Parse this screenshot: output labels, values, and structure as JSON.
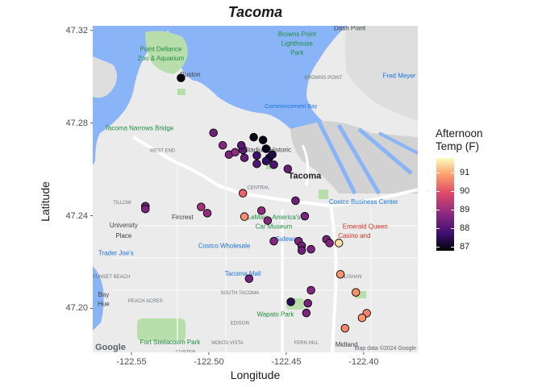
{
  "title": "Tacoma",
  "chart_data": {
    "type": "scatter",
    "title": "Tacoma",
    "xlabel": "Longitude",
    "ylabel": "Latitude",
    "xlim": [
      -122.575,
      -122.365
    ],
    "ylim": [
      47.181,
      47.322
    ],
    "x_ticks": [
      -122.55,
      -122.5,
      -122.45,
      -122.4
    ],
    "x_tick_labels": [
      "-122.55",
      "-122.50",
      "-122.45",
      "-122.40"
    ],
    "y_ticks": [
      47.2,
      47.24,
      47.28,
      47.32
    ],
    "y_tick_labels": [
      "47.20",
      "47.24",
      "47.28",
      "47.32"
    ],
    "legend": {
      "title_line1": "Afternoon",
      "title_line2": "Temp (F)",
      "position": "right",
      "range": [
        86.8,
        91.8
      ],
      "ticks": [
        87,
        88,
        89,
        90,
        91
      ],
      "tick_labels": [
        "87",
        "88",
        "89",
        "90",
        "91"
      ],
      "colormap": "inferno"
    },
    "points": [
      {
        "lon": -122.518,
        "lat": 47.2995,
        "temp": 86.9
      },
      {
        "lon": -122.497,
        "lat": 47.2758,
        "temp": 88.4
      },
      {
        "lon": -122.491,
        "lat": 47.2704,
        "temp": 88.7
      },
      {
        "lon": -122.487,
        "lat": 47.2664,
        "temp": 88.6
      },
      {
        "lon": -122.483,
        "lat": 47.2674,
        "temp": 88.8
      },
      {
        "lon": -122.478,
        "lat": 47.2684,
        "temp": 88.2
      },
      {
        "lon": -122.477,
        "lat": 47.265,
        "temp": 88.3
      },
      {
        "lon": -122.479,
        "lat": 47.2704,
        "temp": 88.1
      },
      {
        "lon": -122.471,
        "lat": 47.2739,
        "temp": 87.0
      },
      {
        "lon": -122.465,
        "lat": 47.2727,
        "temp": 86.9
      },
      {
        "lon": -122.463,
        "lat": 47.2689,
        "temp": 87.0
      },
      {
        "lon": -122.469,
        "lat": 47.266,
        "temp": 87.8
      },
      {
        "lon": -122.461,
        "lat": 47.265,
        "temp": 87.2
      },
      {
        "lon": -122.459,
        "lat": 47.2664,
        "temp": 87.4
      },
      {
        "lon": -122.463,
        "lat": 47.2636,
        "temp": 87.6
      },
      {
        "lon": -122.458,
        "lat": 47.262,
        "temp": 87.9
      },
      {
        "lon": -122.449,
        "lat": 47.2602,
        "temp": 88.3
      },
      {
        "lon": -122.469,
        "lat": 47.2624,
        "temp": 88.0
      },
      {
        "lon": -122.541,
        "lat": 47.2441,
        "temp": 88.5
      },
      {
        "lon": -122.541,
        "lat": 47.2429,
        "temp": 88.6
      },
      {
        "lon": -122.505,
        "lat": 47.2438,
        "temp": 89.1
      },
      {
        "lon": -122.501,
        "lat": 47.2411,
        "temp": 88.9
      },
      {
        "lon": -122.478,
        "lat": 47.2497,
        "temp": 90.2
      },
      {
        "lon": -122.477,
        "lat": 47.2396,
        "temp": 90.7
      },
      {
        "lon": -122.466,
        "lat": 47.2422,
        "temp": 88.9
      },
      {
        "lon": -122.462,
        "lat": 47.2379,
        "temp": 88.7
      },
      {
        "lon": -122.444,
        "lat": 47.2465,
        "temp": 88.4
      },
      {
        "lon": -122.438,
        "lat": 47.2398,
        "temp": 88.6
      },
      {
        "lon": -122.458,
        "lat": 47.229,
        "temp": 88.7
      },
      {
        "lon": -122.442,
        "lat": 47.229,
        "temp": 88.6
      },
      {
        "lon": -122.44,
        "lat": 47.227,
        "temp": 88.5
      },
      {
        "lon": -122.44,
        "lat": 47.225,
        "temp": 88.4
      },
      {
        "lon": -122.434,
        "lat": 47.2255,
        "temp": 88.6
      },
      {
        "lon": -122.424,
        "lat": 47.2298,
        "temp": 88.5
      },
      {
        "lon": -122.422,
        "lat": 47.2282,
        "temp": 88.7
      },
      {
        "lon": -122.416,
        "lat": 47.2282,
        "temp": 91.5
      },
      {
        "lon": -122.415,
        "lat": 47.2147,
        "temp": 90.8
      },
      {
        "lon": -122.405,
        "lat": 47.2069,
        "temp": 90.7
      },
      {
        "lon": -122.398,
        "lat": 47.1979,
        "temp": 90.6
      },
      {
        "lon": -122.401,
        "lat": 47.1959,
        "temp": 90.8
      },
      {
        "lon": -122.412,
        "lat": 47.1914,
        "temp": 90.6
      },
      {
        "lon": -122.474,
        "lat": 47.2128,
        "temp": 88.5
      },
      {
        "lon": -122.447,
        "lat": 47.2028,
        "temp": 87.5
      },
      {
        "lon": -122.434,
        "lat": 47.2078,
        "temp": 88.7
      },
      {
        "lon": -122.436,
        "lat": 47.2022,
        "temp": 88.5
      },
      {
        "lon": -122.437,
        "lat": 47.198,
        "temp": 88.6
      }
    ]
  },
  "basemap": {
    "attribution_left": "Google",
    "attribution_right": "Map data ©2024 Google",
    "labels": [
      {
        "text": "Point Defiance",
        "x": -122.531,
        "y": 47.311,
        "kind": "poi"
      },
      {
        "text": "Zoo & Aquarium",
        "x": -122.531,
        "y": 47.307,
        "kind": "poi"
      },
      {
        "text": "Browns Point",
        "x": -122.443,
        "y": 47.3175,
        "kind": "poi"
      },
      {
        "text": "Lighthouse",
        "x": -122.443,
        "y": 47.3135,
        "kind": "poi"
      },
      {
        "text": "Park",
        "x": -122.443,
        "y": 47.3095,
        "kind": "poi"
      },
      {
        "text": "Dash Point",
        "x": -122.409,
        "y": 47.32,
        "kind": "place"
      },
      {
        "text": "Ruston",
        "x": -122.512,
        "y": 47.3,
        "kind": "place"
      },
      {
        "text": "Fred Meyer",
        "x": -122.377,
        "y": 47.2995,
        "kind": "shop"
      },
      {
        "text": "BROWNS POINT",
        "x": -122.426,
        "y": 47.299,
        "kind": "district"
      },
      {
        "text": "Commencement Bay",
        "x": -122.447,
        "y": 47.2865,
        "kind": "water"
      },
      {
        "text": "Tacoma Narrows Bridge",
        "x": -122.545,
        "y": 47.277,
        "kind": "poi"
      },
      {
        "text": "WEST END",
        "x": -122.53,
        "y": 47.2675,
        "kind": "district"
      },
      {
        "text": "Stadium Historic",
        "x": -122.462,
        "y": 47.2675,
        "kind": "place"
      },
      {
        "text": "Tacoma",
        "x": -122.438,
        "y": 47.256,
        "kind": "city"
      },
      {
        "text": "CENTRAL",
        "x": -122.468,
        "y": 47.2515,
        "kind": "district"
      },
      {
        "text": "TILLOW",
        "x": -122.556,
        "y": 47.245,
        "kind": "district"
      },
      {
        "text": "Costco Business Center",
        "x": -122.4,
        "y": 47.245,
        "kind": "shop"
      },
      {
        "text": "University",
        "x": -122.555,
        "y": 47.235,
        "kind": "place"
      },
      {
        "text": "Place",
        "x": -122.555,
        "y": 47.2305,
        "kind": "place"
      },
      {
        "text": "Fircrest",
        "x": -122.517,
        "y": 47.2385,
        "kind": "place"
      },
      {
        "text": "LeMay - America's",
        "x": -122.458,
        "y": 47.2385,
        "kind": "poi"
      },
      {
        "text": "Car Museum",
        "x": -122.458,
        "y": 47.2345,
        "kind": "poi"
      },
      {
        "text": "Emerald Queen",
        "x": -122.399,
        "y": 47.2345,
        "kind": "casino"
      },
      {
        "text": "Casino and",
        "x": -122.406,
        "y": 47.2305,
        "kind": "casino"
      },
      {
        "text": "Costco Wholesale",
        "x": -122.49,
        "y": 47.226,
        "kind": "shop"
      },
      {
        "text": "Safeway",
        "x": -122.449,
        "y": 47.229,
        "kind": "shop"
      },
      {
        "text": "Trader Joe's",
        "x": -122.56,
        "y": 47.223,
        "kind": "shop"
      },
      {
        "text": "SUNSET BEACH",
        "x": -122.563,
        "y": 47.213,
        "kind": "district"
      },
      {
        "text": "Tacoma Mall",
        "x": -122.478,
        "y": 47.214,
        "kind": "shop"
      },
      {
        "text": "SALISHAN",
        "x": -122.409,
        "y": 47.213,
        "kind": "district"
      },
      {
        "text": "SOUTH TACOMA",
        "x": -122.48,
        "y": 47.206,
        "kind": "district"
      },
      {
        "text": "Bay",
        "x": -122.568,
        "y": 47.205,
        "kind": "place"
      },
      {
        "text": "Hue",
        "x": -122.568,
        "y": 47.201,
        "kind": "place"
      },
      {
        "text": "PEACH ACRES",
        "x": -122.541,
        "y": 47.2025,
        "kind": "district"
      },
      {
        "text": "Wapato Park",
        "x": -122.457,
        "y": 47.1965,
        "kind": "poi"
      },
      {
        "text": "EDISON",
        "x": -122.48,
        "y": 47.193,
        "kind": "district"
      },
      {
        "text": "Fort Steilacoom Park",
        "x": -122.525,
        "y": 47.1845,
        "kind": "poi"
      },
      {
        "text": "MONTA VISTA",
        "x": -122.488,
        "y": 47.1845,
        "kind": "district"
      },
      {
        "text": "FERN HILL",
        "x": -122.437,
        "y": 47.1845,
        "kind": "district"
      },
      {
        "text": "Midland",
        "x": -122.411,
        "y": 47.1835,
        "kind": "place"
      },
      {
        "text": "CUSTER",
        "x": -122.515,
        "y": 47.1805,
        "kind": "district"
      }
    ]
  },
  "colors": {
    "water": "#8ab4f8",
    "land": "#ebebeb",
    "park": "#b8deab",
    "highway": "#ffffff",
    "shoreline_land": "#dcdcdc"
  }
}
